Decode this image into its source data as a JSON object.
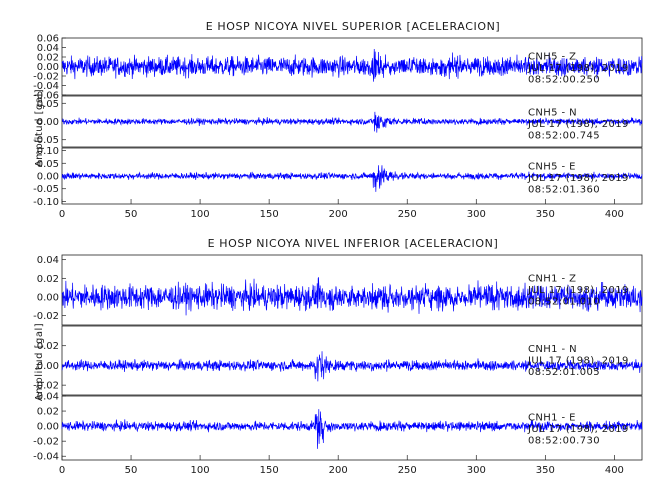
{
  "chart_data": [
    {
      "type": "line",
      "title": "E HOSP NICOYA NIVEL SUPERIOR [ACELERACION]",
      "xlabel": "",
      "ylabel": "Amplitud [gal]",
      "xlim": [
        0,
        420
      ],
      "x_ticks": [
        0,
        50,
        100,
        150,
        200,
        250,
        300,
        350,
        400
      ],
      "grid": false,
      "legend": "none",
      "line_color": "#0000ff",
      "series": [
        {
          "channel": "CNH5 - Z",
          "date": "JUL 17 (198), 2019",
          "time": "08:52:00.250",
          "ylim": [
            -0.06,
            0.06
          ],
          "y_ticks": [
            -0.06,
            -0.04,
            -0.02,
            0.0,
            0.02,
            0.04,
            0.06
          ],
          "noise_amplitude": 0.02,
          "event_onset_s": 225,
          "event_peak": 0.03
        },
        {
          "channel": "CNH5 - N",
          "date": "JUL 17 (198), 2019",
          "time": "08:52:00.745",
          "ylim": [
            -0.07,
            0.07
          ],
          "y_ticks": [
            -0.05,
            0.0,
            0.05
          ],
          "noise_amplitude": 0.008,
          "event_onset_s": 225,
          "event_peak": 0.05
        },
        {
          "channel": "CNH5 - E",
          "date": "JUL 17 (198), 2019",
          "time": "08:52:01.360",
          "ylim": [
            -0.11,
            0.11
          ],
          "y_ticks": [
            -0.1,
            -0.05,
            0.0,
            0.05,
            0.1
          ],
          "noise_amplitude": 0.012,
          "event_onset_s": 225,
          "event_peak": 0.09
        }
      ]
    },
    {
      "type": "line",
      "title": "E HOSP NICOYA NIVEL INFERIOR [ACELERACION]",
      "xlabel": "",
      "ylabel": "Amplitud [gal]",
      "xlim": [
        0,
        420
      ],
      "x_ticks": [
        0,
        50,
        100,
        150,
        200,
        250,
        300,
        350,
        400
      ],
      "grid": false,
      "legend": "none",
      "line_color": "#0000ff",
      "series": [
        {
          "channel": "CNH1 - Z",
          "date": "JUL 17 (198), 2019",
          "time": "08:52:01.010",
          "ylim": [
            -0.03,
            0.045
          ],
          "y_ticks": [
            -0.02,
            0.0,
            0.02,
            0.04
          ],
          "noise_amplitude": 0.013,
          "event_onset_s": 183,
          "event_peak": 0.02
        },
        {
          "channel": "CNH1 - N",
          "date": "JUL 17 (198), 2019",
          "time": "08:52:01.005",
          "ylim": [
            -0.03,
            0.04
          ],
          "y_ticks": [
            -0.02,
            0.0,
            0.02
          ],
          "noise_amplitude": 0.005,
          "event_onset_s": 183,
          "event_peak": 0.025
        },
        {
          "channel": "CNH1 - E",
          "date": "JUL 17 (198), 2019",
          "time": "08:52:00.730",
          "ylim": [
            -0.045,
            0.04
          ],
          "y_ticks": [
            -0.04,
            -0.02,
            0.0,
            0.02,
            0.04
          ],
          "noise_amplitude": 0.006,
          "event_onset_s": 183,
          "event_peak": 0.03
        }
      ]
    }
  ]
}
